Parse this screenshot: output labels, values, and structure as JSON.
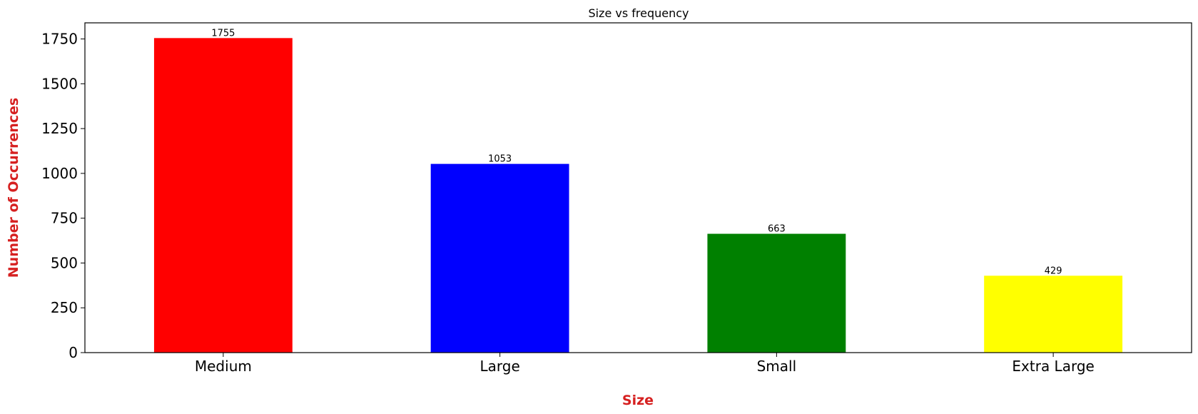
{
  "chart_data": {
    "type": "bar",
    "title": "Size vs frequency",
    "xlabel": "Size",
    "ylabel": "Number of Occurrences",
    "categories": [
      "Medium",
      "Large",
      "Small",
      "Extra Large"
    ],
    "values": [
      1755,
      1053,
      663,
      429
    ],
    "data_labels": [
      "1755",
      "1053",
      "663",
      "429"
    ],
    "bar_colors": [
      "#ff0000",
      "#0000ff",
      "#008000",
      "#ffff00"
    ],
    "axis_label_color": "#d62020",
    "ylim": [
      0,
      1840
    ],
    "yticks": [
      0,
      250,
      500,
      750,
      1000,
      1250,
      1500,
      1750
    ],
    "grid": false,
    "legend": "none"
  }
}
